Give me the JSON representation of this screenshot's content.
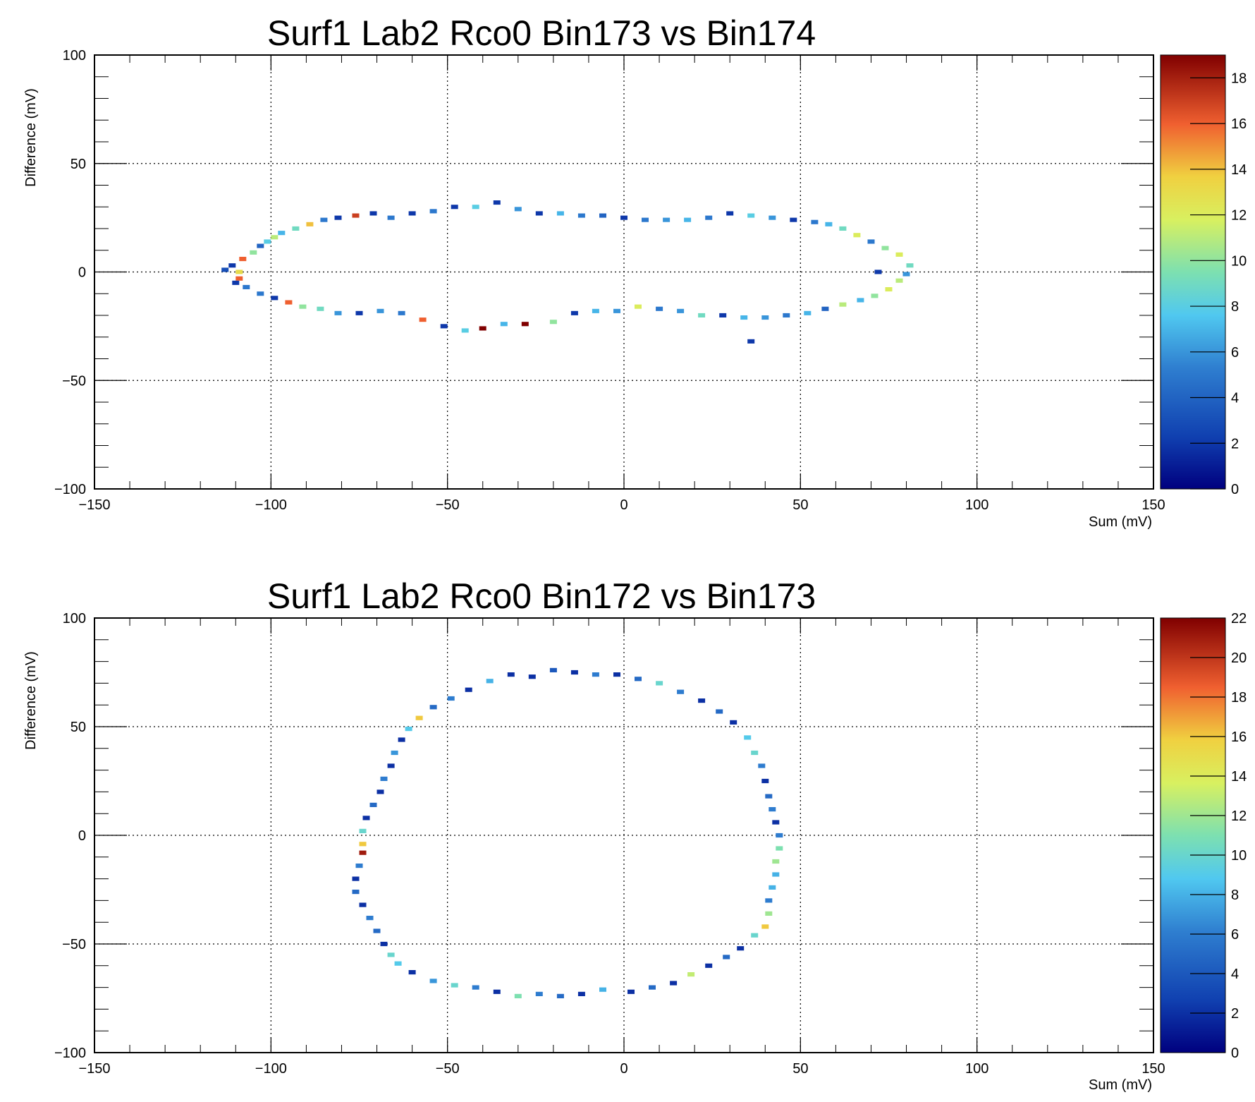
{
  "chart_data": [
    {
      "type": "heatmap",
      "title": "Surf1 Lab2 Rco0 Bin173 vs Bin174",
      "xlabel": "Sum (mV)",
      "ylabel": "Difference (mV)",
      "xlim": [
        -150,
        150
      ],
      "ylim": [
        -100,
        100
      ],
      "x_ticks": [
        "−150",
        "−100",
        "−50",
        "0",
        "50",
        "100",
        "150"
      ],
      "y_ticks": [
        "−100",
        "−50",
        "0",
        "50",
        "100"
      ],
      "grid": true,
      "colorbar": {
        "min": 0,
        "max": 19,
        "ticks": [
          "0",
          "2",
          "4",
          "6",
          "8",
          "10",
          "12",
          "14",
          "16",
          "18"
        ]
      },
      "bin_size": [
        2,
        2
      ],
      "ring": {
        "shape": "closed loop",
        "xmin": -113,
        "xmax": 82,
        "ymin": -29,
        "ymax": 33
      },
      "points": [
        [
          -113,
          1,
          3
        ],
        [
          -111,
          3,
          2
        ],
        [
          -109,
          0,
          13
        ],
        [
          -109,
          -3,
          16
        ],
        [
          -108,
          6,
          16
        ],
        [
          -105,
          9,
          10
        ],
        [
          -103,
          12,
          4
        ],
        [
          -101,
          14,
          8
        ],
        [
          -99,
          16,
          11
        ],
        [
          -97,
          18,
          7
        ],
        [
          -93,
          20,
          9
        ],
        [
          -89,
          22,
          14
        ],
        [
          -85,
          24,
          5
        ],
        [
          -81,
          25,
          2
        ],
        [
          -76,
          26,
          17
        ],
        [
          -71,
          27,
          2
        ],
        [
          -66,
          25,
          5
        ],
        [
          -60,
          27,
          2
        ],
        [
          -54,
          28,
          5
        ],
        [
          -48,
          30,
          2
        ],
        [
          -42,
          30,
          8
        ],
        [
          -36,
          32,
          2
        ],
        [
          -30,
          29,
          6
        ],
        [
          -24,
          27,
          2
        ],
        [
          -18,
          27,
          7
        ],
        [
          -12,
          26,
          5
        ],
        [
          -6,
          26,
          4
        ],
        [
          0,
          25,
          2
        ],
        [
          6,
          24,
          5
        ],
        [
          12,
          24,
          6
        ],
        [
          18,
          24,
          7
        ],
        [
          24,
          25,
          5
        ],
        [
          30,
          27,
          2
        ],
        [
          36,
          26,
          8
        ],
        [
          42,
          25,
          6
        ],
        [
          48,
          24,
          2
        ],
        [
          54,
          23,
          5
        ],
        [
          58,
          22,
          7
        ],
        [
          62,
          20,
          9
        ],
        [
          66,
          17,
          12
        ],
        [
          70,
          14,
          5
        ],
        [
          74,
          11,
          10
        ],
        [
          78,
          8,
          12
        ],
        [
          81,
          3,
          9
        ],
        [
          80,
          -1,
          6
        ],
        [
          78,
          -4,
          11
        ],
        [
          75,
          -8,
          12
        ],
        [
          71,
          -11,
          10
        ],
        [
          67,
          -13,
          7
        ],
        [
          62,
          -15,
          11
        ],
        [
          57,
          -17,
          4
        ],
        [
          52,
          -19,
          7
        ],
        [
          46,
          -20,
          5
        ],
        [
          40,
          -21,
          6
        ],
        [
          34,
          -21,
          7
        ],
        [
          28,
          -20,
          2
        ],
        [
          22,
          -20,
          9
        ],
        [
          16,
          -18,
          6
        ],
        [
          10,
          -17,
          5
        ],
        [
          4,
          -16,
          12
        ],
        [
          -2,
          -18,
          6
        ],
        [
          -8,
          -18,
          7
        ],
        [
          -14,
          -19,
          2
        ],
        [
          -20,
          -23,
          10
        ],
        [
          -28,
          -24,
          19
        ],
        [
          -34,
          -24,
          7
        ],
        [
          -40,
          -26,
          19
        ],
        [
          -45,
          -27,
          8
        ],
        [
          -51,
          -25,
          2
        ],
        [
          -57,
          -22,
          16
        ],
        [
          -63,
          -19,
          5
        ],
        [
          -69,
          -18,
          6
        ],
        [
          -75,
          -19,
          2
        ],
        [
          -81,
          -19,
          6
        ],
        [
          -86,
          -17,
          9
        ],
        [
          -91,
          -16,
          10
        ],
        [
          -95,
          -14,
          16
        ],
        [
          -99,
          -12,
          2
        ],
        [
          -103,
          -10,
          5
        ],
        [
          -107,
          -7,
          5
        ],
        [
          -110,
          -5,
          2
        ],
        [
          36,
          -32,
          2
        ],
        [
          72,
          0,
          2
        ]
      ]
    },
    {
      "type": "heatmap",
      "title": "Surf1 Lab2 Rco0 Bin172 vs Bin173",
      "xlabel": "Sum (mV)",
      "ylabel": "Difference (mV)",
      "xlim": [
        -150,
        150
      ],
      "ylim": [
        -100,
        100
      ],
      "x_ticks": [
        "−150",
        "−100",
        "−50",
        "0",
        "50",
        "100",
        "150"
      ],
      "y_ticks": [
        "−100",
        "−50",
        "0",
        "50",
        "100"
      ],
      "grid": true,
      "colorbar": {
        "min": 0,
        "max": 22,
        "ticks": [
          "0",
          "2",
          "4",
          "6",
          "8",
          "10",
          "12",
          "14",
          "16",
          "18",
          "20",
          "22"
        ]
      },
      "bin_size": [
        2,
        2
      ],
      "ring": {
        "shape": "closed loop",
        "xmin": -77,
        "xmax": 45,
        "ymin": -77,
        "ymax": 77
      },
      "points": [
        [
          -20,
          76,
          4
        ],
        [
          -14,
          75,
          2
        ],
        [
          -8,
          74,
          6
        ],
        [
          -2,
          74,
          2
        ],
        [
          4,
          72,
          5
        ],
        [
          10,
          70,
          10
        ],
        [
          16,
          66,
          6
        ],
        [
          22,
          62,
          2
        ],
        [
          27,
          57,
          5
        ],
        [
          31,
          52,
          2
        ],
        [
          35,
          45,
          9
        ],
        [
          37,
          38,
          10
        ],
        [
          39,
          32,
          6
        ],
        [
          40,
          25,
          2
        ],
        [
          41,
          18,
          5
        ],
        [
          42,
          12,
          6
        ],
        [
          43,
          6,
          2
        ],
        [
          44,
          0,
          6
        ],
        [
          44,
          -6,
          11
        ],
        [
          43,
          -12,
          12
        ],
        [
          43,
          -18,
          8
        ],
        [
          42,
          -24,
          8
        ],
        [
          41,
          -30,
          6
        ],
        [
          41,
          -36,
          12
        ],
        [
          40,
          -42,
          16
        ],
        [
          37,
          -46,
          10
        ],
        [
          33,
          -52,
          2
        ],
        [
          29,
          -56,
          5
        ],
        [
          24,
          -60,
          2
        ],
        [
          19,
          -64,
          13
        ],
        [
          14,
          -68,
          2
        ],
        [
          8,
          -70,
          5
        ],
        [
          2,
          -72,
          2
        ],
        [
          -6,
          -71,
          8
        ],
        [
          -12,
          -73,
          2
        ],
        [
          -18,
          -74,
          5
        ],
        [
          -24,
          -73,
          6
        ],
        [
          -30,
          -74,
          11
        ],
        [
          -36,
          -72,
          2
        ],
        [
          -42,
          -70,
          6
        ],
        [
          -48,
          -69,
          10
        ],
        [
          -54,
          -67,
          7
        ],
        [
          -60,
          -63,
          2
        ],
        [
          -64,
          -59,
          9
        ],
        [
          -66,
          -55,
          10
        ],
        [
          -68,
          -50,
          2
        ],
        [
          -70,
          -44,
          5
        ],
        [
          -72,
          -38,
          6
        ],
        [
          -74,
          -32,
          2
        ],
        [
          -76,
          -26,
          5
        ],
        [
          -76,
          -20,
          2
        ],
        [
          -75,
          -14,
          6
        ],
        [
          -74,
          -8,
          21
        ],
        [
          -74,
          -4,
          16
        ],
        [
          -74,
          2,
          10
        ],
        [
          -73,
          8,
          2
        ],
        [
          -71,
          14,
          5
        ],
        [
          -69,
          20,
          2
        ],
        [
          -68,
          26,
          6
        ],
        [
          -66,
          32,
          2
        ],
        [
          -65,
          38,
          7
        ],
        [
          -63,
          44,
          2
        ],
        [
          -61,
          49,
          9
        ],
        [
          -58,
          54,
          16
        ],
        [
          -54,
          59,
          5
        ],
        [
          -49,
          63,
          6
        ],
        [
          -44,
          67,
          2
        ],
        [
          -38,
          71,
          8
        ],
        [
          -32,
          74,
          2
        ],
        [
          -26,
          73,
          2
        ]
      ]
    }
  ]
}
